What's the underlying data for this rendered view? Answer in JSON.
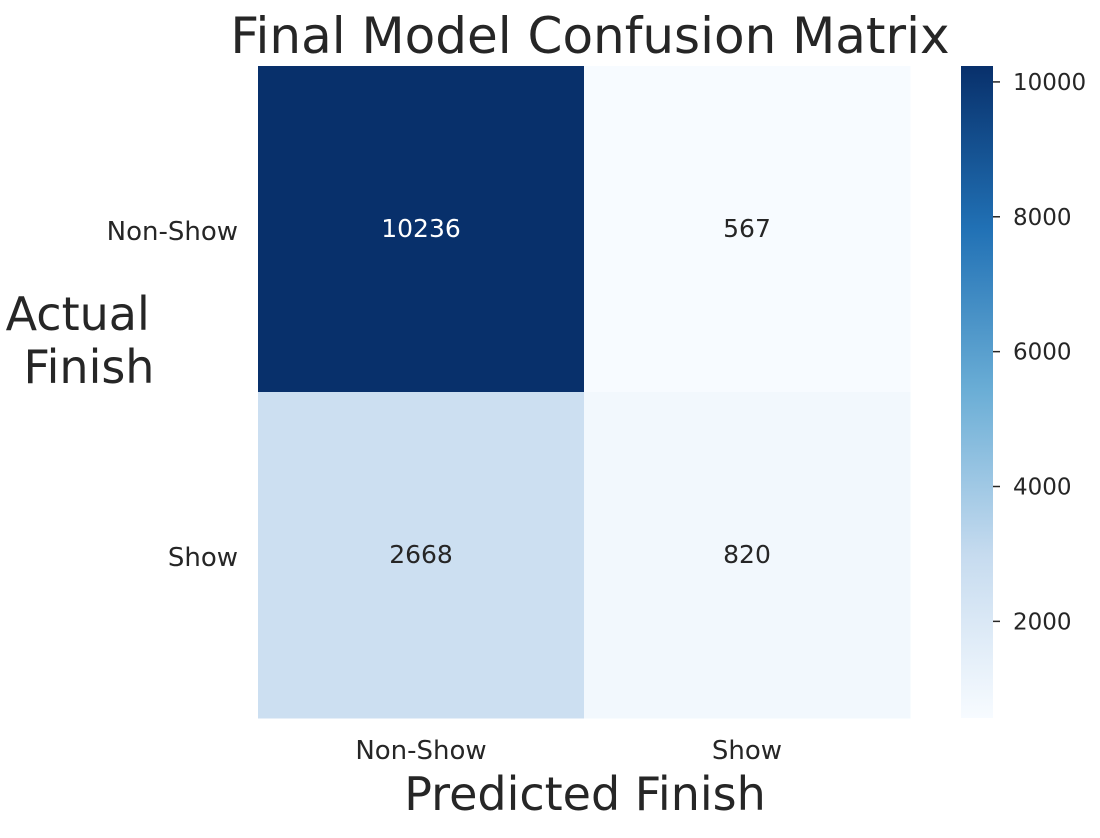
{
  "chart_data": {
    "type": "heatmap",
    "title": "Final Model Confusion Matrix",
    "xlabel": "Predicted Finish",
    "ylabel_lines": [
      "Actual",
      "Finish"
    ],
    "x_categories": [
      "Non-Show",
      "Show"
    ],
    "y_categories": [
      "Non-Show",
      "Show"
    ],
    "values": [
      [
        10236,
        567
      ],
      [
        2668,
        820
      ]
    ],
    "colormap": "Blues",
    "colorbar": {
      "ticks": [
        2000,
        4000,
        6000,
        8000,
        10000
      ],
      "range": [
        567,
        10236
      ]
    },
    "colors": {
      "cmap_low": "#f7fbff",
      "cmap_mid_low": "#c6dbef",
      "cmap_mid": "#6baed6",
      "cmap_mid_high": "#2171b5",
      "cmap_high": "#08306b",
      "text_dark": "#262626",
      "text_light": "#ffffff"
    }
  }
}
